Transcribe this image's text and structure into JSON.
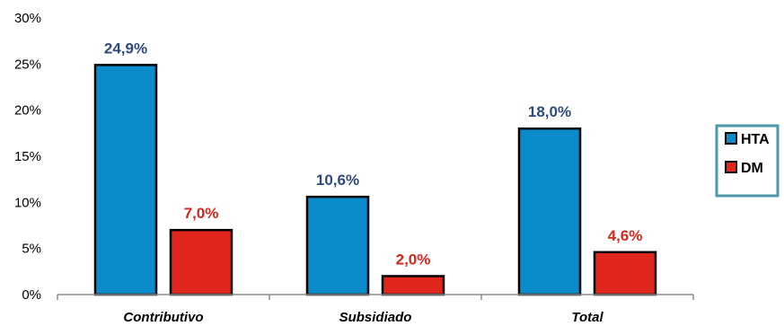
{
  "chart_data": {
    "type": "bar",
    "categories": [
      "Contributivo",
      "Subsidiado",
      "Total"
    ],
    "series": [
      {
        "name": "HTA",
        "values": [
          24.9,
          10.6,
          18.0
        ],
        "labels": [
          "24,9%",
          "10,6%",
          "18,0%"
        ],
        "color": "#0a8ccc",
        "label_color": "#2e4a7a"
      },
      {
        "name": "DM",
        "values": [
          7.0,
          2.0,
          4.6
        ],
        "labels": [
          "7,0%",
          "2,0%",
          "4,6%"
        ],
        "color": "#e0261d",
        "label_color": "#d9261c"
      }
    ],
    "ylim": [
      0,
      30
    ],
    "yticks": [
      0,
      5,
      10,
      15,
      20,
      25,
      30
    ],
    "ytick_labels": [
      "0%",
      "5%",
      "10%",
      "15%",
      "20%",
      "25%",
      "30%"
    ],
    "legend_position": "right",
    "legend_border_color": "#4a9aa8",
    "grid": false
  }
}
